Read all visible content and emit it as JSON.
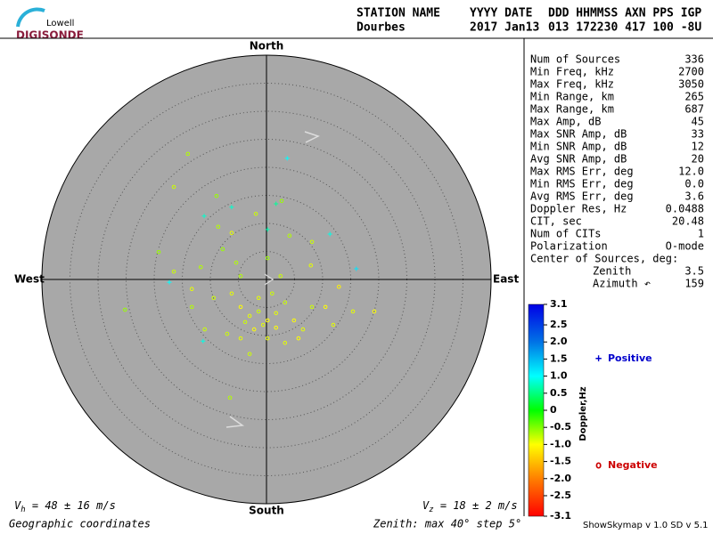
{
  "logo": {
    "top": "Lowell",
    "bottom": "DIGISONDE"
  },
  "header": {
    "labels": [
      "STATION NAME",
      "YYYY DATE",
      "DDD HHMMSS AXN PPS IGP"
    ],
    "values": [
      "Dourbes",
      "2017 Jan13",
      "013 172230 417 100 -8U"
    ]
  },
  "stats": [
    [
      "Num of Sources",
      "336"
    ],
    [
      "Min Freq, kHz",
      "2700"
    ],
    [
      "Max Freq, kHz",
      "3050"
    ],
    [
      "Min Range, km",
      "265"
    ],
    [
      "Max Range, km",
      "687"
    ],
    [
      "Max Amp, dB",
      "45"
    ],
    [
      "Max SNR Amp, dB",
      "33"
    ],
    [
      "Min SNR Amp, dB",
      "12"
    ],
    [
      "Avg SNR Amp, dB",
      "20"
    ],
    [
      "Max RMS Err, deg",
      "12.0"
    ],
    [
      "Min RMS Err, deg",
      "0.0"
    ],
    [
      "Avg RMS Err, deg",
      "3.6"
    ],
    [
      "Doppler Res, Hz",
      "0.0488"
    ],
    [
      "CIT, sec",
      "20.48"
    ],
    [
      "Num of CITs",
      "1"
    ],
    [
      "Polarization",
      "O-mode"
    ]
  ],
  "center": {
    "title": "Center of Sources, deg:",
    "rows": [
      [
        "Zenith",
        "3.5"
      ],
      [
        "Azimuth ↶",
        "159"
      ]
    ]
  },
  "chart_data": {
    "type": "skymap",
    "directions": {
      "north": "North",
      "south": "South",
      "east": "East",
      "west": "West"
    },
    "rlim": [
      0,
      40
    ],
    "rings": [
      5,
      10,
      15,
      20,
      25,
      30,
      35
    ],
    "series": [
      {
        "name": "Positive",
        "color": "#0000cc",
        "marker": "+",
        "east": [
          3.7,
          -11.1,
          -6.2,
          1.7,
          11.3,
          16,
          -17.3,
          -11.3,
          0.2
        ],
        "north": [
          21.6,
          11.3,
          12.9,
          13.5,
          8.1,
          1.9,
          -0.5,
          -11,
          8.9
        ],
        "doppler": [
          1.0,
          0.8,
          0.8,
          0.6,
          0.9,
          1.2,
          1.0,
          0.9,
          0.7
        ]
      },
      {
        "name": "Negative",
        "color": "#cc0000",
        "marker": "o",
        "east": [
          -14,
          -16.5,
          -8.9,
          -8.6,
          -6.2,
          -1.9,
          2.7,
          4.1,
          8.1,
          7.9,
          -19.2,
          -16.5,
          -13.3,
          -11.7,
          -25.2,
          -9.4,
          -6.2,
          -4.6,
          -3,
          -1.4,
          0.2,
          1.7,
          3.3,
          4.9,
          6.5,
          8.1,
          10.5,
          12.9,
          15.4,
          19.2,
          11.9,
          -7,
          -4.6,
          -2.2,
          0.2,
          -3,
          -6.5,
          -11,
          -13.3,
          -1.4,
          1,
          -4.6,
          0.2,
          2.5,
          -5.4,
          -7.8,
          3.3,
          5.7,
          -0.6,
          -3.8,
          1.7
        ],
        "north": [
          22.4,
          16.5,
          14.9,
          9.4,
          8.3,
          11.7,
          14,
          7.8,
          6.7,
          2.5,
          4.9,
          1.4,
          -1.7,
          2.2,
          -5.4,
          -3.3,
          -2.5,
          -4.9,
          -6.5,
          -5.7,
          -7.3,
          -6,
          -4.1,
          -7.3,
          -8.9,
          -4.9,
          -4.9,
          -1.3,
          -5.7,
          -5.7,
          -8.1,
          -9.7,
          -10.5,
          -8.9,
          -10.5,
          -13.3,
          -21.1,
          -8.9,
          -4.9,
          -3.3,
          -2.5,
          0.6,
          3.8,
          0.6,
          3,
          5.4,
          -11.3,
          -10.5,
          -8.1,
          -7.6,
          -8.6
        ],
        "doppler": [
          -0.7,
          -0.8,
          -0.6,
          -0.7,
          -0.9,
          -0.8,
          -0.6,
          -0.7,
          -0.8,
          -0.9,
          -0.6,
          -0.8,
          -0.9,
          -0.7,
          -0.6,
          -0.8,
          -0.9,
          -1.0,
          -0.9,
          -0.8,
          -1.0,
          -0.9,
          -0.8,
          -1.0,
          -0.9,
          -0.8,
          -1.0,
          -1.1,
          -0.9,
          -1.0,
          -0.9,
          -0.8,
          -0.9,
          -1.0,
          -0.9,
          -0.8,
          -0.7,
          -0.8,
          -0.7,
          -0.9,
          -0.8,
          -0.7,
          -0.6,
          -0.8,
          -0.7,
          -0.6,
          -0.9,
          -1.0,
          -0.9,
          -0.8,
          -1.0
        ]
      }
    ],
    "colorbar": {
      "label": "Doppler,Hz",
      "lim": [
        -3.1,
        3.1
      ],
      "ticks": [
        3.1,
        2.5,
        {
          "value": 2,
          "label": "2.0"
        },
        1.5,
        {
          "value": 1,
          "label": "1.0"
        },
        0.5,
        0,
        -0.5,
        {
          "value": -1,
          "label": "-1.0"
        },
        -1.5,
        {
          "value": -2,
          "label": "-2.0"
        },
        -2.5,
        -3.1
      ]
    }
  },
  "velocity": {
    "h": {
      "symbol": "V",
      "sub": "h",
      "text": " = 48 ± 16 m/s"
    },
    "z": {
      "symbol": "V",
      "sub": "z",
      "text": " = 18 ± 2 m/s"
    }
  },
  "footer": {
    "coords": "Geographic coordinates",
    "zenith": "Zenith: max 40°  step 5°",
    "version": "ShowSkymap v 1.0  SD v 5.1"
  }
}
